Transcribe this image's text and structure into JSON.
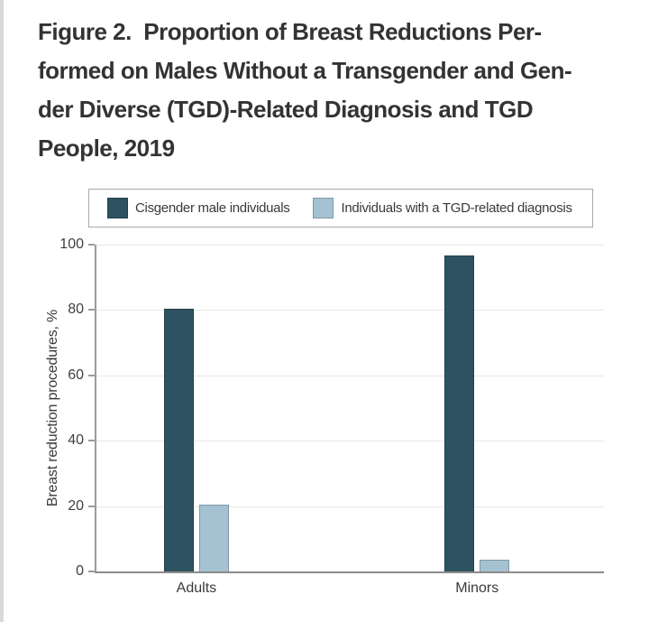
{
  "figure": {
    "title": "Figure 2.  Proportion of Breast Reductions Per-\nformed on Males Without a Transgender and Gen-\nder Diverse (TGD)-Related Diagnosis and TGD\nPeople, 2019"
  },
  "legend": {
    "items": [
      {
        "label": "Cisgender male individuals",
        "color": "#2d5261",
        "border_color": "#223f4c"
      },
      {
        "label": "Individuals with a TGD-related diagnosis",
        "color": "#a4c2d1",
        "border_color": "#7e98a6"
      }
    ]
  },
  "chart_data": {
    "type": "bar",
    "categories": [
      "Adults",
      "Minors"
    ],
    "series": [
      {
        "name": "Cisgender male individuals",
        "color": "#2d5261",
        "border_color": "#223f4c",
        "values": [
          80.3,
          96.6
        ]
      },
      {
        "name": "Individuals with a TGD-related diagnosis",
        "color": "#a4c2d1",
        "border_color": "#7e98a6",
        "values": [
          20.4,
          3.7
        ]
      }
    ],
    "xlabel": "",
    "ylabel": "Breast reduction procedures, %",
    "ylim": [
      0,
      100
    ],
    "yticks": [
      0,
      20,
      40,
      60,
      80,
      100
    ],
    "grid": true,
    "legend_position": "top"
  },
  "colors": {
    "grid": "#e8e8e8",
    "axis": "#9c9c9c",
    "text": "#3a3a3a",
    "title": "#333333",
    "legend_border": "#a9a9a9",
    "page_edge": "#d9d9d9",
    "background": "#ffffff"
  }
}
